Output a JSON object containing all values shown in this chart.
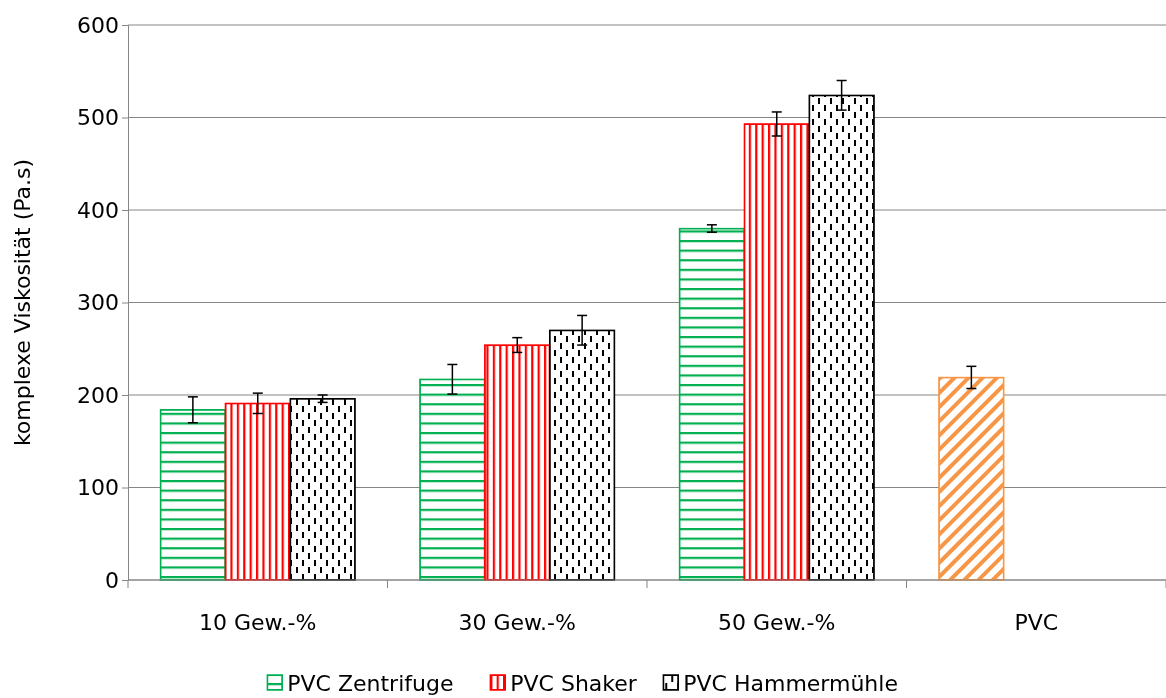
{
  "chart_data": {
    "type": "bar",
    "ylabel": "komplexe Viskosität (Pa.s)",
    "categories": [
      "10 Gew.-%",
      "30 Gew.-%",
      "50 Gew.-%",
      "PVC"
    ],
    "series": [
      {
        "name": "PVC Zentrifuge",
        "color": "#00b050",
        "colors": [
          "#00b050",
          "#00b050",
          "#00b050",
          "#f79646"
        ],
        "values": [
          184,
          217,
          380,
          219
        ],
        "errors": [
          14,
          16,
          4,
          12
        ]
      },
      {
        "name": "PVC Shaker",
        "color": "#ff0000",
        "values": [
          191,
          254,
          493,
          null
        ],
        "errors": [
          11,
          8,
          13,
          null
        ]
      },
      {
        "name": "PVC Hammermühle",
        "color": "#000000",
        "values": [
          196,
          270,
          524,
          null
        ],
        "errors": [
          4,
          16,
          16,
          null
        ]
      }
    ],
    "ylim": [
      0,
      600
    ],
    "yticks": [
      0,
      100,
      200,
      300,
      400,
      500,
      600
    ],
    "grid": "y",
    "legend": "bottom"
  }
}
